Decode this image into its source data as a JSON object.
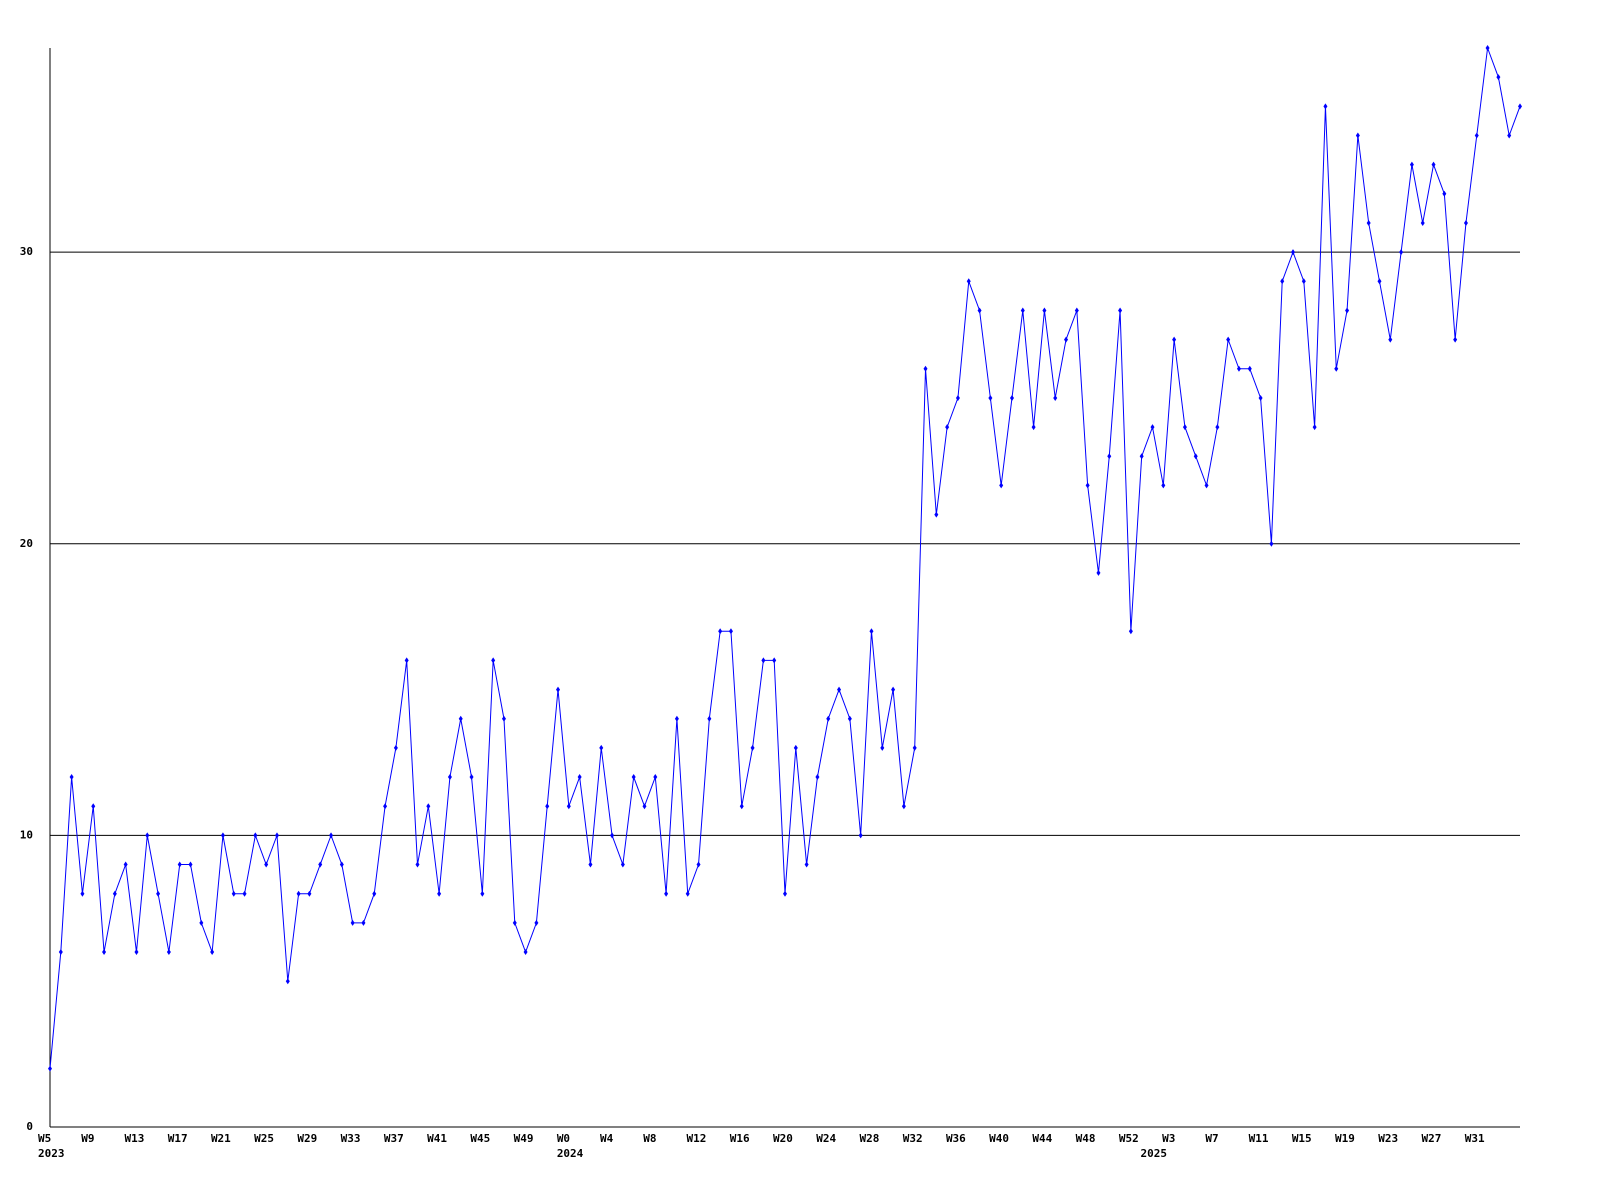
{
  "chart_data": {
    "type": "line",
    "color": "#0000ff",
    "grid": true,
    "ylim": [
      0,
      37
    ],
    "yticks": [
      0,
      10,
      20,
      30
    ],
    "categories": [
      "W5",
      null,
      null,
      null,
      "W9",
      null,
      null,
      null,
      "W13",
      null,
      null,
      null,
      "W17",
      null,
      null,
      null,
      "W21",
      null,
      null,
      null,
      "W25",
      null,
      null,
      null,
      "W29",
      null,
      null,
      null,
      "W33",
      null,
      null,
      null,
      "W37",
      null,
      null,
      null,
      "W41",
      null,
      null,
      null,
      "W45",
      null,
      null,
      null,
      "W49",
      null,
      null,
      null,
      "W0",
      null,
      null,
      null,
      "W4",
      null,
      null,
      null,
      "W8",
      null,
      null,
      null,
      "W12",
      null,
      null,
      null,
      "W16",
      null,
      null,
      null,
      "W20",
      null,
      null,
      null,
      "W24",
      null,
      null,
      null,
      "W28",
      null,
      null,
      null,
      "W32",
      null,
      null,
      null,
      "W36",
      null,
      null,
      null,
      "W40",
      null,
      null,
      null,
      "W44",
      null,
      null,
      null,
      "W48",
      null,
      null,
      null,
      "W52",
      null,
      null,
      null,
      "W3",
      null,
      null,
      null,
      "W7",
      null,
      null,
      null,
      "W11",
      null,
      null,
      null,
      "W15",
      null,
      null,
      null,
      "W19",
      null,
      null,
      null,
      "W23",
      null,
      null,
      null,
      "W27",
      null,
      null,
      null,
      "W31",
      null,
      null,
      null,
      null
    ],
    "year_labels": [
      "2023",
      null,
      null,
      null,
      null,
      null,
      null,
      null,
      null,
      null,
      null,
      null,
      null,
      null,
      null,
      null,
      null,
      null,
      null,
      null,
      null,
      null,
      null,
      null,
      null,
      null,
      null,
      null,
      null,
      null,
      null,
      null,
      null,
      null,
      null,
      null,
      null,
      null,
      null,
      null,
      null,
      null,
      null,
      null,
      null,
      null,
      null,
      null,
      "2024",
      null,
      null,
      null,
      null,
      null,
      null,
      null,
      null,
      null,
      null,
      null,
      null,
      null,
      null,
      null,
      null,
      null,
      null,
      null,
      null,
      null,
      null,
      null,
      null,
      null,
      null,
      null,
      null,
      null,
      null,
      null,
      null,
      null,
      null,
      null,
      null,
      null,
      null,
      null,
      null,
      null,
      null,
      null,
      null,
      null,
      null,
      null,
      null,
      null,
      null,
      null,
      null,
      null,
      "2025",
      null,
      null,
      null,
      null,
      null,
      null,
      null,
      null,
      null,
      null,
      null,
      null,
      null,
      null,
      null,
      null,
      null,
      null,
      null,
      null,
      null,
      null,
      null,
      null,
      null,
      null,
      null,
      null,
      null,
      null,
      null,
      null,
      null,
      null,
      null,
      null
    ],
    "values": [
      2,
      6,
      12,
      8,
      11,
      6,
      8,
      9,
      6,
      10,
      8,
      6,
      9,
      9,
      7,
      6,
      10,
      8,
      8,
      10,
      9,
      10,
      5,
      8,
      8,
      9,
      10,
      9,
      7,
      7,
      8,
      11,
      13,
      16,
      9,
      11,
      8,
      12,
      14,
      12,
      8,
      16,
      14,
      7,
      6,
      7,
      11,
      15,
      11,
      12,
      9,
      13,
      10,
      9,
      12,
      11,
      12,
      8,
      14,
      8,
      9,
      14,
      17,
      17,
      11,
      13,
      16,
      16,
      8,
      13,
      9,
      12,
      14,
      15,
      14,
      10,
      17,
      13,
      15,
      11,
      13,
      26,
      21,
      24,
      25,
      29,
      28,
      25,
      22,
      25,
      28,
      24,
      28,
      25,
      27,
      28,
      22,
      19,
      23,
      28,
      17,
      23,
      24,
      22,
      27,
      24,
      23,
      22,
      24,
      27,
      26,
      26,
      25,
      20,
      29,
      30,
      29,
      24,
      35,
      26,
      28,
      34,
      31,
      29,
      27,
      30,
      33,
      31,
      33,
      32,
      27,
      31,
      34,
      37,
      36,
      34,
      35
    ]
  }
}
